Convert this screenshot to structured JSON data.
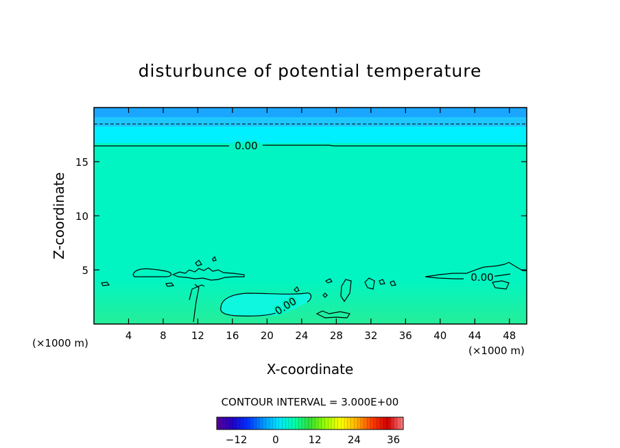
{
  "chart_data": {
    "type": "heatmap",
    "title": "disturbunce of potential temperature",
    "xlabel": "X-coordinate",
    "ylabel": "Z-coordinate",
    "x_unit_left": "(×1000 m)",
    "x_unit_right": "(×1000 m)",
    "xlim": [
      0,
      50
    ],
    "ylim": [
      0,
      20
    ],
    "x_ticks": [
      4,
      8,
      12,
      16,
      20,
      24,
      28,
      32,
      36,
      40,
      44,
      48
    ],
    "y_ticks": [
      5,
      10,
      15
    ],
    "contour_interval_label": "CONTOUR INTERVAL = 3.000E+00",
    "contour_labels": [
      {
        "text": "0.00",
        "x": 15.8,
        "z": 16.3
      },
      {
        "text": "0.00",
        "x": 22.7,
        "z": 1.7
      },
      {
        "text": "0.00",
        "x": 44.2,
        "z": 4.4
      }
    ],
    "field_description": "near-zero disturbance through most of the domain; negative (cooler) near the top above z≈16; slightly positive near the ground below z≈4",
    "colorbar": {
      "ticks": [
        -12,
        0,
        12,
        24,
        36
      ],
      "min": -18,
      "max": 39,
      "colors": [
        "#5a0096",
        "#2200c8",
        "#0032ff",
        "#0096ff",
        "#00e6ff",
        "#00ffaa",
        "#33e033",
        "#9cff00",
        "#ffff00",
        "#ffb000",
        "#ff3c00",
        "#d20000",
        "#ff8080"
      ]
    },
    "colors": {
      "top_band_1": "#1aa6ff",
      "top_band_2": "#1ec8ff",
      "top_band_3": "#00f0ff",
      "interior": "#00f5c2",
      "lower_layer": "#26ee9a",
      "cold_pocket": "#10f7e0",
      "contour": "#000000"
    }
  }
}
